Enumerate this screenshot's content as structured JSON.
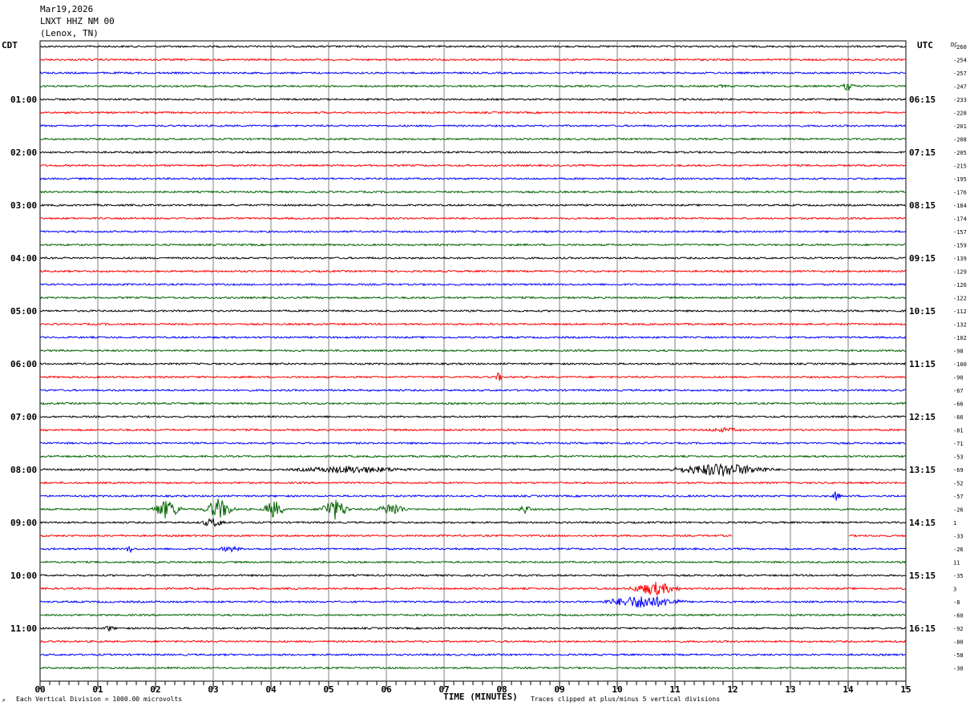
{
  "header": {
    "date": "Mar19,2026",
    "station": "LNXT HHZ NM 00",
    "location": "(Lenox, TN)"
  },
  "left_tz": "CDT",
  "right_tz": "UTC",
  "dc_label": "DC",
  "left_times": [
    "01:00",
    "02:00",
    "03:00",
    "04:00",
    "05:00",
    "06:00",
    "07:00",
    "08:00",
    "09:00",
    "10:00",
    "11:00"
  ],
  "right_times": [
    "06:15",
    "07:15",
    "08:15",
    "09:15",
    "10:15",
    "11:15",
    "12:15",
    "13:15",
    "14:15",
    "15:15",
    "16:15"
  ],
  "footer": {
    "scale_note": "Each Vertical Division = 1000.00 microvolts",
    "clip_note": "Traces clipped at plus/minus 5 vertical divisions"
  },
  "colors": {
    "trace_cycle": [
      "#000000",
      "#ff0000",
      "#0000ff",
      "#006400"
    ],
    "grid": "#808080"
  },
  "chart_data": {
    "type": "line",
    "title": "LNXT HHZ NM 00",
    "xlabel": "TIME (MINUTES)",
    "ylabel": "",
    "x_ticks": [
      "00",
      "01",
      "02",
      "03",
      "04",
      "05",
      "06",
      "07",
      "08",
      "09",
      "10",
      "11",
      "12",
      "13",
      "14",
      "15"
    ],
    "xlim": [
      0,
      15
    ],
    "traces_per_hour": 4,
    "trace_count": 48,
    "dc_offsets": [
      -260,
      -254,
      -257,
      -247,
      -233,
      -228,
      -201,
      -208,
      -205,
      -215,
      -195,
      -176,
      -184,
      -174,
      -157,
      -159,
      -139,
      -129,
      -126,
      -122,
      -112,
      -132,
      -102,
      -98,
      -100,
      -90,
      -67,
      -66,
      -66,
      -81,
      -71,
      -53,
      -69,
      -52,
      -57,
      -26,
      1,
      -33,
      -26,
      11,
      -35,
      3,
      -8,
      -60,
      -92,
      -80,
      -58,
      -30
    ],
    "events": [
      {
        "trace": 3,
        "start_min": 7.4,
        "end_min": 7.6,
        "amp": 2
      },
      {
        "trace": 3,
        "start_min": 11.6,
        "end_min": 12.0,
        "amp": 2
      },
      {
        "trace": 3,
        "start_min": 13.9,
        "end_min": 14.1,
        "amp": 6
      },
      {
        "trace": 25,
        "start_min": 7.9,
        "end_min": 8.0,
        "amp": 7
      },
      {
        "trace": 29,
        "start_min": 11.5,
        "end_min": 12.2,
        "amp": 3
      },
      {
        "trace": 32,
        "start_min": 4.5,
        "end_min": 6.3,
        "amp": 5
      },
      {
        "trace": 32,
        "start_min": 11.1,
        "end_min": 12.5,
        "amp": 9
      },
      {
        "trace": 34,
        "start_min": 13.8,
        "end_min": 13.8,
        "amp": 8
      },
      {
        "trace": 35,
        "start_min": 2.0,
        "end_min": 2.4,
        "amp": 13
      },
      {
        "trace": 35,
        "start_min": 2.9,
        "end_min": 3.3,
        "amp": 14
      },
      {
        "trace": 35,
        "start_min": 3.9,
        "end_min": 4.2,
        "amp": 12
      },
      {
        "trace": 35,
        "start_min": 4.9,
        "end_min": 5.3,
        "amp": 14
      },
      {
        "trace": 35,
        "start_min": 5.9,
        "end_min": 6.3,
        "amp": 9
      },
      {
        "trace": 35,
        "start_min": 8.3,
        "end_min": 8.5,
        "amp": 6
      },
      {
        "trace": 36,
        "start_min": 2.8,
        "end_min": 3.2,
        "amp": 6
      },
      {
        "trace": 38,
        "start_min": 1.5,
        "end_min": 1.6,
        "amp": 6
      },
      {
        "trace": 38,
        "start_min": 3.1,
        "end_min": 3.5,
        "amp": 4
      },
      {
        "trace": 41,
        "start_min": 10.3,
        "end_min": 11.0,
        "amp": 9
      },
      {
        "trace": 42,
        "start_min": 9.9,
        "end_min": 11.0,
        "amp": 9
      },
      {
        "trace": 44,
        "start_min": 1.1,
        "end_min": 1.3,
        "amp": 4
      }
    ],
    "gaps": [
      {
        "trace": 37,
        "start_min": 12.0,
        "end_min": 14.0
      }
    ]
  }
}
